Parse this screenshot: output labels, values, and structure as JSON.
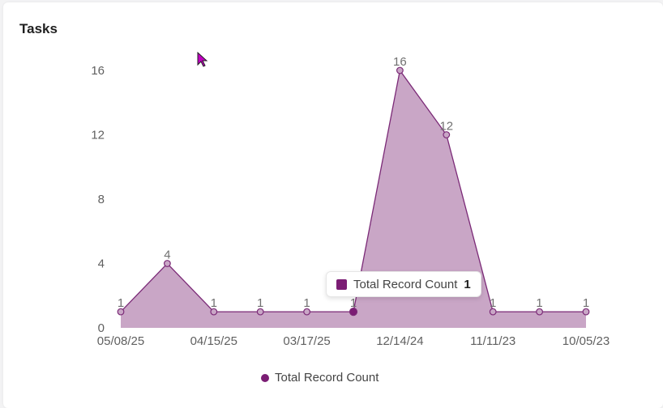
{
  "card": {
    "title": "Tasks"
  },
  "chart_data": {
    "type": "area",
    "categories": [
      "05/08/25",
      "",
      "04/15/25",
      "",
      "03/17/25",
      "",
      "12/14/24",
      "",
      "11/11/23",
      "",
      "10/05/23"
    ],
    "series": [
      {
        "name": "Total Record Count",
        "values": [
          1,
          4,
          1,
          1,
          1,
          1,
          16,
          12,
          1,
          1,
          1
        ]
      }
    ],
    "ylim": [
      0,
      16
    ],
    "yticks": [
      0,
      4,
      8,
      12,
      16
    ],
    "xlabel": "",
    "ylabel": "",
    "grid": false,
    "data_labels": true,
    "legend_position": "bottom",
    "colors": {
      "line": "#7b2a77",
      "fill": "#c9a6c6",
      "marker": "#c9a6c6",
      "active_marker": "#7b1d74"
    },
    "highlighted_index": 5
  },
  "tooltip": {
    "series_name": "Total Record Count",
    "value": "1",
    "color": "#7b1d74"
  },
  "legend": {
    "label": "Total Record Count",
    "color": "#7b1d74"
  },
  "cursor": {
    "color": "#c000c0"
  }
}
